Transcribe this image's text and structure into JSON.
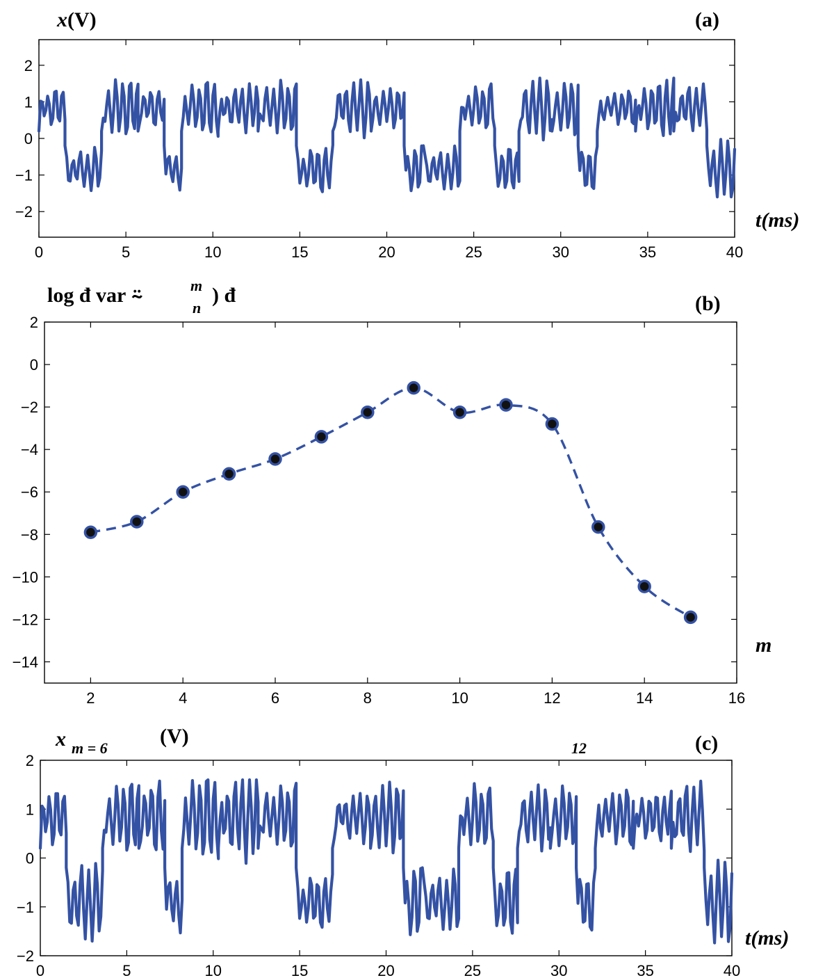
{
  "colors": {
    "line": "#3452a4",
    "marker_fill": "#111111",
    "marker_edge": "#3452a4"
  },
  "chart_data": [
    {
      "id": "a",
      "type": "line",
      "panel_label": "(a)",
      "ylabel_var": "x",
      "ylabel_unit": "(V)",
      "xlabel": "t(ms)",
      "xlim": [
        0,
        40
      ],
      "ylim": [
        -2.7,
        2.7
      ],
      "xticks": [
        0,
        5,
        10,
        15,
        20,
        25,
        30,
        35,
        40
      ],
      "yticks": [
        -2,
        -1,
        0,
        1,
        2
      ],
      "grid": false,
      "signal": {
        "sample_step_ms": 0.1,
        "segments_ms": [
          [
            0.0,
            "P"
          ],
          [
            1.5,
            "N"
          ],
          [
            3.6,
            "P"
          ],
          [
            5.7,
            "P"
          ],
          [
            7.2,
            "N"
          ],
          [
            8.2,
            "P"
          ],
          [
            10.3,
            "P"
          ],
          [
            12.6,
            "P"
          ],
          [
            14.8,
            "N"
          ],
          [
            16.9,
            "P"
          ],
          [
            19.1,
            "P"
          ],
          [
            21.0,
            "N"
          ],
          [
            22.1,
            "N"
          ],
          [
            24.2,
            "P"
          ],
          [
            26.2,
            "N"
          ],
          [
            27.6,
            "P"
          ],
          [
            29.5,
            "P"
          ],
          [
            31.0,
            "N"
          ],
          [
            32.1,
            "P"
          ],
          [
            34.3,
            "P"
          ],
          [
            36.5,
            "P"
          ],
          [
            38.4,
            "N"
          ]
        ],
        "positive_level": [
          0.2,
          1.5
        ],
        "negative_level": [
          -1.5,
          -0.2
        ],
        "approx_range": [
          -1.6,
          1.65
        ]
      }
    },
    {
      "id": "b",
      "type": "line",
      "panel_label": "(b)",
      "ylabel": "log đ var ⍨",
      "ylabel_sup": "m",
      "ylabel_sub": "n",
      "ylabel_tail": ") đ",
      "xlabel": "m",
      "xlim": [
        1,
        16
      ],
      "ylim": [
        -15,
        2
      ],
      "xticks": [
        2,
        4,
        6,
        8,
        10,
        12,
        14,
        16
      ],
      "yticks": [
        2,
        0,
        -2,
        -4,
        -6,
        -8,
        -10,
        -12,
        -14
      ],
      "grid": false,
      "linestyle": "dashed",
      "marker": "circle",
      "x": [
        2,
        3,
        4,
        5,
        6,
        7,
        8,
        9,
        10,
        11,
        12,
        13,
        14,
        15
      ],
      "y": [
        -7.9,
        -7.4,
        -6.0,
        -5.15,
        -4.45,
        -3.4,
        -2.25,
        -1.1,
        -2.25,
        -1.9,
        -2.8,
        -7.65,
        -10.45,
        -11.9
      ]
    },
    {
      "id": "c",
      "type": "line",
      "panel_label": "(c)",
      "ylabel_var": "x",
      "ylabel_sub": "m = 6",
      "ylabel_unit": "(V)",
      "annotation": "12",
      "xlabel": "t(ms)",
      "xlim": [
        0,
        40
      ],
      "ylim": [
        -2,
        2
      ],
      "xticks": [
        0,
        5,
        10,
        15,
        20,
        25,
        30,
        35,
        40
      ],
      "yticks": [
        -2,
        -1,
        0,
        1,
        2
      ],
      "grid": false,
      "signal": {
        "sample_step_ms": 0.1,
        "segments_ms": [
          [
            0.0,
            "P"
          ],
          [
            1.5,
            "N"
          ],
          [
            3.6,
            "P"
          ],
          [
            5.7,
            "P"
          ],
          [
            7.2,
            "N"
          ],
          [
            8.2,
            "P"
          ],
          [
            10.3,
            "P"
          ],
          [
            12.6,
            "P"
          ],
          [
            14.8,
            "N"
          ],
          [
            16.9,
            "P"
          ],
          [
            19.1,
            "P"
          ],
          [
            21.0,
            "N"
          ],
          [
            22.1,
            "N"
          ],
          [
            24.2,
            "P"
          ],
          [
            26.2,
            "N"
          ],
          [
            27.6,
            "P"
          ],
          [
            29.5,
            "P"
          ],
          [
            31.0,
            "N"
          ],
          [
            32.1,
            "P"
          ],
          [
            34.3,
            "P"
          ],
          [
            36.5,
            "P"
          ],
          [
            38.4,
            "N"
          ]
        ],
        "positive_level": [
          0.2,
          1.5
        ],
        "negative_level": [
          -1.6,
          -0.2
        ],
        "approx_range": [
          -1.75,
          1.6
        ]
      }
    }
  ]
}
